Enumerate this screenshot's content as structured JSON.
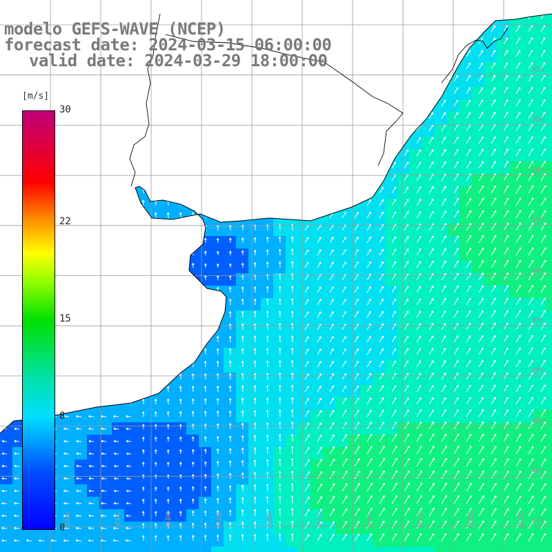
{
  "title": {
    "line1": "modelo GEFS-WAVE (NCEP)",
    "line2": "forecast date: 2024-03-15 06:00:00",
    "line3": "valid date: 2024-03-29 18:00:00"
  },
  "colorbar": {
    "unit": "[m/s]",
    "ticks": [
      {
        "label": "30",
        "value": 30
      },
      {
        "label": "22",
        "value": 22
      },
      {
        "label": "15",
        "value": 15
      },
      {
        "label": "8",
        "value": 8
      },
      {
        "label": "0",
        "value": 0
      }
    ],
    "min": 0,
    "max": 30
  },
  "map": {
    "lon_range": [
      -61,
      -50
    ],
    "lat_range": [
      -42,
      -31
    ],
    "grid_lines": true,
    "lat_labels": [
      "32S",
      "33S",
      "34S",
      "35S",
      "36S",
      "37S",
      "38S",
      "39S",
      "40S",
      "41S"
    ],
    "lon_labels": [
      "60W",
      "59W",
      "58W",
      "57W",
      "56W",
      "55W",
      "54W",
      "53W",
      "52W",
      "51W"
    ],
    "variable": "wind speed and direction",
    "land_color": "#ffffff",
    "ocean_palette": [
      "#0010ff",
      "#0060ff",
      "#00b0ff",
      "#00e0f0",
      "#00f0c0",
      "#10f080"
    ]
  }
}
